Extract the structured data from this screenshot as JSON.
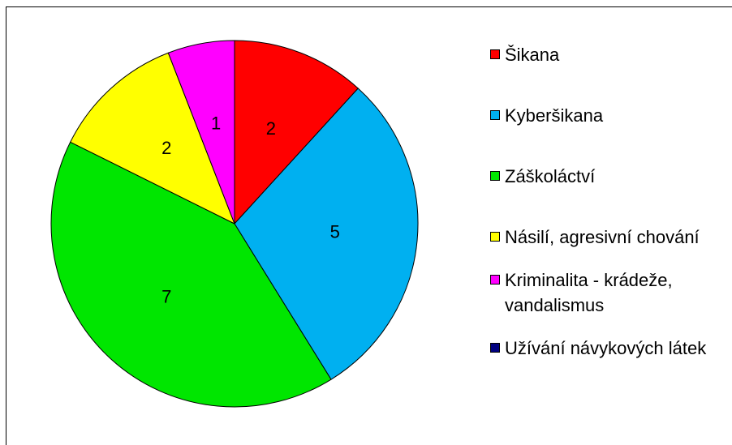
{
  "chart_data": {
    "type": "pie",
    "categories": [
      "Šikana",
      "Kyberšikana",
      "Záškoláctví",
      "Násilí, agresivní chování",
      "Kriminalita - krádeže, vandalismus",
      "Užívání návykových látek"
    ],
    "values": [
      2,
      5,
      7,
      2,
      1,
      0
    ],
    "colors": [
      "#ff0000",
      "#00b0f0",
      "#00e600",
      "#ffff00",
      "#ff00ff",
      "#000080"
    ],
    "legend": "right"
  }
}
